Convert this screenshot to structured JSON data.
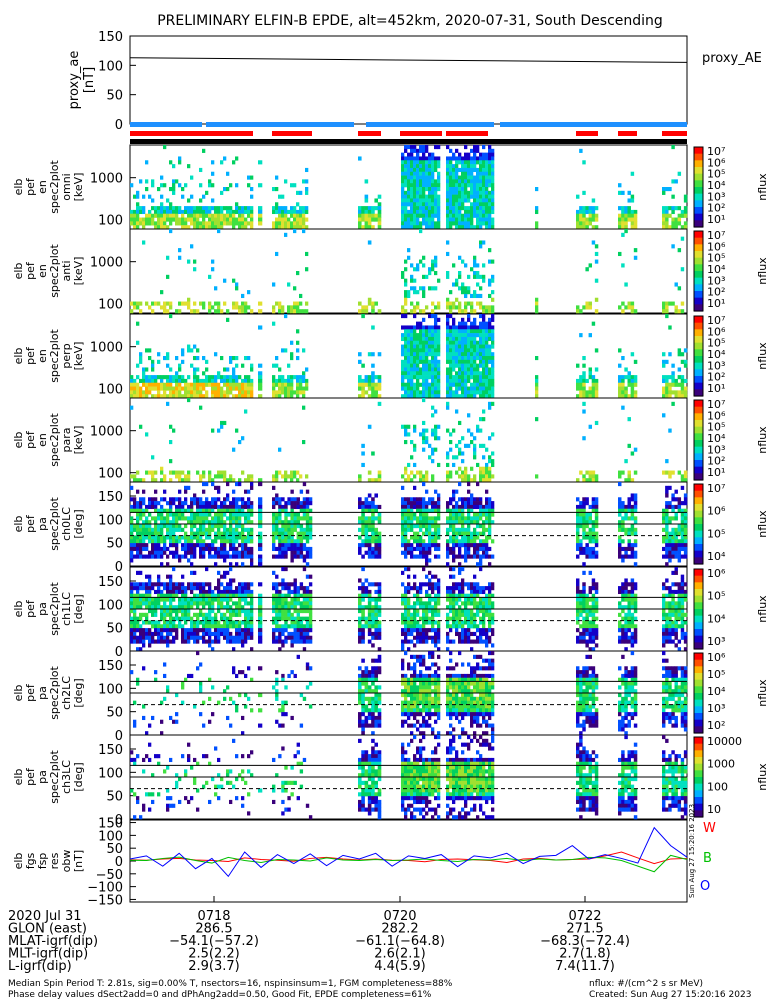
{
  "title": "PRELIMINARY ELFIN-B EPDE, alt=452km, 2020-07-31, South Descending",
  "colors": {
    "red": "#ff0000",
    "blue": "#0060ff",
    "green": "#00c000",
    "black": "#000000",
    "sky": "#1e90ff"
  },
  "proxy_ae": {
    "ylabel_1": "proxy_ae",
    "ylabel_2": "[nT]",
    "legend": "proxy_AE",
    "yticks": [
      "150",
      "100",
      "50",
      "0"
    ]
  },
  "panels": [
    {
      "ylabel": [
        "elb",
        "pef",
        "en",
        "spec2plot",
        "omni",
        "[keV]"
      ],
      "type": "energy",
      "yticks": [
        "1000",
        "100"
      ],
      "cbar_ticks": [
        "10⁷",
        "10⁶",
        "10⁵",
        "10⁴",
        "10³",
        "10²",
        "10¹"
      ],
      "cbar_label": "nflux"
    },
    {
      "ylabel": [
        "elb",
        "pef",
        "en",
        "spec2plot",
        "anti",
        "[keV]"
      ],
      "type": "energy",
      "yticks": [
        "1000",
        "100"
      ],
      "cbar_ticks": [
        "10⁷",
        "10⁶",
        "10⁵",
        "10⁴",
        "10³",
        "10²",
        "10¹"
      ],
      "cbar_label": "nflux"
    },
    {
      "ylabel": [
        "elb",
        "pef",
        "en",
        "spec2plot",
        "perp",
        "[keV]"
      ],
      "type": "energy",
      "yticks": [
        "1000",
        "100"
      ],
      "cbar_ticks": [
        "10⁷",
        "10⁶",
        "10⁵",
        "10⁴",
        "10³",
        "10²",
        "10¹"
      ],
      "cbar_label": "nflux"
    },
    {
      "ylabel": [
        "elb",
        "pef",
        "en",
        "spec2plot",
        "para",
        "[keV]"
      ],
      "type": "energy",
      "yticks": [
        "1000",
        "100"
      ],
      "cbar_ticks": [
        "10⁷",
        "10⁶",
        "10⁵",
        "10⁴",
        "10³",
        "10²",
        "10¹"
      ],
      "cbar_label": "nflux"
    },
    {
      "ylabel": [
        "elb",
        "pef",
        "pa",
        "spec2plot",
        "ch0LC",
        "[deg]"
      ],
      "type": "pa",
      "yticks": [
        "150",
        "100",
        "50",
        "0"
      ],
      "cbar_ticks": [
        "10⁷",
        "10⁶",
        "10⁵",
        "10⁴"
      ],
      "cbar_label": "nflux"
    },
    {
      "ylabel": [
        "elb",
        "pef",
        "pa",
        "spec2plot",
        "ch1LC",
        "[deg]"
      ],
      "type": "pa",
      "yticks": [
        "150",
        "100",
        "50",
        "0"
      ],
      "cbar_ticks": [
        "10⁶",
        "10⁵",
        "10⁴",
        "10³"
      ],
      "cbar_label": "nflux"
    },
    {
      "ylabel": [
        "elb",
        "pef",
        "pa",
        "spec2plot",
        "ch2LC",
        "[deg]"
      ],
      "type": "pa",
      "yticks": [
        "150",
        "100",
        "50",
        "0"
      ],
      "cbar_ticks": [
        "10⁶",
        "10⁵",
        "10⁴",
        "10³",
        "10²"
      ],
      "cbar_label": "nflux"
    },
    {
      "ylabel": [
        "elb",
        "pef",
        "pa",
        "spec2plot",
        "ch3LC",
        "[deg]"
      ],
      "type": "pa",
      "yticks": [
        "150",
        "100",
        "50",
        "0"
      ],
      "cbar_ticks": [
        "10000",
        "1000",
        "100",
        "10"
      ],
      "cbar_label": "nflux"
    }
  ],
  "fgs": {
    "ylabel": [
      "elb",
      "fgs",
      "fsp",
      "res",
      "obw",
      "[nT]"
    ],
    "yticks": [
      "150",
      "100",
      "50",
      "0",
      "−50",
      "−100",
      "−150"
    ],
    "legend": [
      "W",
      "B",
      "O"
    ],
    "stamp": "Sun Aug 27 15:20:16 2023"
  },
  "orbit": {
    "rows": [
      {
        "label": "2020 Jul 31",
        "values": [
          "0718",
          "0720",
          "0722"
        ]
      },
      {
        "label": "GLON (east)",
        "values": [
          "286.5",
          "282.2",
          "271.5"
        ]
      },
      {
        "label": "MLAT-igrf(dip)",
        "values": [
          "−54.1(−57.2)",
          "−61.1(−64.8)",
          "−68.3(−72.4)"
        ]
      },
      {
        "label": "MLT-igrf(dip)",
        "values": [
          "2.5(2.2)",
          "2.6(2.1)",
          "2.7(1.8)"
        ]
      },
      {
        "label": "L-igrf(dip)",
        "values": [
          "2.9(3.7)",
          "4.4(5.9)",
          "7.4(11.7)"
        ]
      }
    ]
  },
  "footer": {
    "line1": "Median Spin Period T: 2.81s, sig=0.00% T, nsectors=16, nspinsinsum=1, FGM completeness=88%",
    "line2": "Phase delay values dSect2add=0 and dPhAng2add=0.50, Good Fit, EPDE completeness=61%",
    "right1": "nflux: #/(cm^2 s sr MeV)",
    "right2": "Created: Sun Aug 27 15:20:16 2023"
  },
  "chart_data": {
    "type": "heatmap",
    "title": "PRELIMINARY ELFIN-B EPDE, alt=452km, 2020-07-31, South Descending",
    "x_tick_labels": [
      "0718",
      "0720",
      "0722"
    ],
    "proxy_ae_series": {
      "name": "proxy_AE",
      "x": [
        0,
        1
      ],
      "y": [
        113,
        105
      ]
    },
    "ylim_proxy_ae": [
      0,
      150
    ],
    "ylim_energy_keV": [
      60,
      6000
    ],
    "ylim_pitch_deg": [
      0,
      180
    ],
    "pa_reference_lines_deg": [
      115,
      90,
      65
    ],
    "fgs_series": [
      {
        "name": "W",
        "color": "#ff0000",
        "values": [
          5,
          3,
          8,
          10,
          4,
          2,
          -2,
          12,
          6,
          3,
          -1,
          10,
          14,
          8,
          4,
          8,
          3,
          2,
          -3,
          6,
          8,
          5,
          2,
          -6,
          8,
          10,
          4,
          6,
          8,
          20,
          35,
          12,
          -10,
          8,
          10
        ]
      },
      {
        "name": "B",
        "color": "#00c000",
        "values": [
          3,
          2,
          10,
          15,
          2,
          -8,
          14,
          2,
          -6,
          6,
          4,
          0,
          12,
          4,
          2,
          6,
          2,
          4,
          8,
          2,
          -2,
          6,
          4,
          10,
          2,
          8,
          4,
          6,
          14,
          12,
          2,
          -20,
          -42,
          22,
          6
        ]
      },
      {
        "name": "O",
        "color": "#0000ff",
        "values": [
          8,
          20,
          -20,
          30,
          -30,
          10,
          -60,
          35,
          -25,
          25,
          -10,
          28,
          -18,
          22,
          8,
          30,
          -20,
          20,
          10,
          25,
          -22,
          20,
          12,
          30,
          -10,
          18,
          22,
          60,
          8,
          25,
          10,
          -8,
          130,
          60,
          15
        ]
      }
    ],
    "ylim_fgs": [
      -160,
      160
    ]
  }
}
